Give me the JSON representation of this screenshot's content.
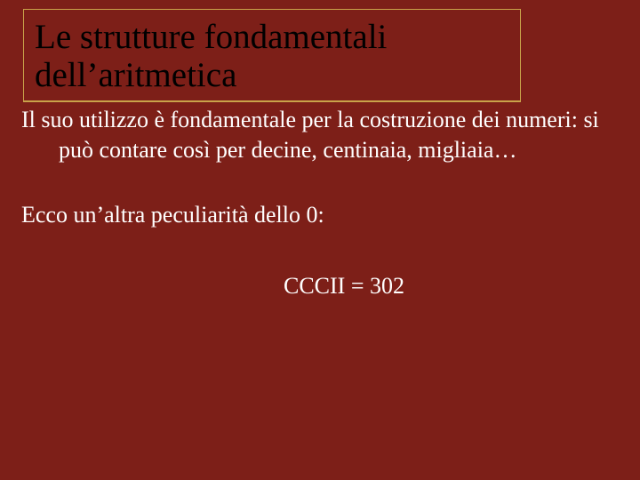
{
  "slide": {
    "background_color": "#7d1f18",
    "title_border_color": "#c9a34a",
    "title_text_color": "#000000",
    "body_text_color": "#ffffff",
    "title": "Le strutture fondamentali dell’aritmetica",
    "paragraph1": "Il suo utilizzo è fondamentale per la costruzione dei numeri: si può contare così per decine, centinaia, migliaia…",
    "paragraph2": "Ecco un’altra peculiarità dello 0:",
    "paragraph3": "CCCII = 302",
    "title_fontsize": 39,
    "body_fontsize": 26
  }
}
